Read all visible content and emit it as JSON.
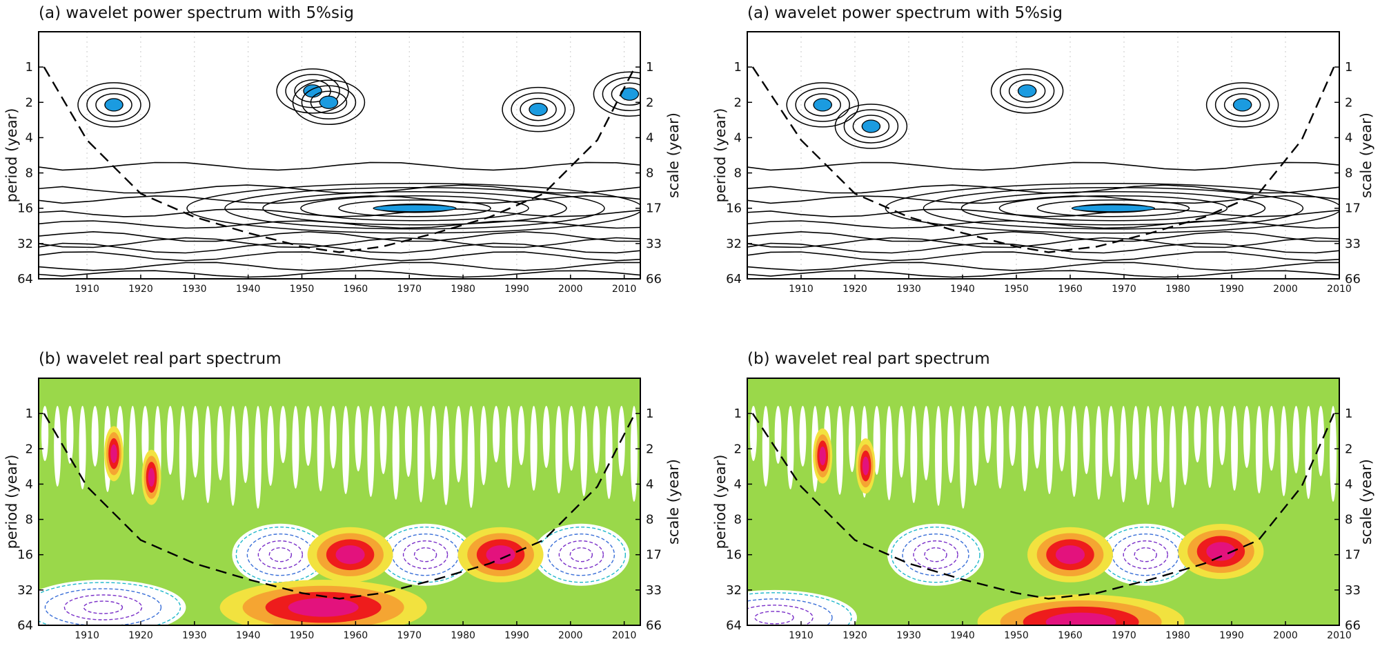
{
  "chart_data": [
    {
      "panel": "top-left",
      "type": "heatmap",
      "variant": "wavelet-power-contour",
      "title": "(a) wavelet power spectrum with 5%sig",
      "ylabel_left": "period (year)",
      "ylabel_right": "scale (year)",
      "xlim": [
        1901,
        2013
      ],
      "x_ticks": [
        1910,
        1920,
        1930,
        1940,
        1950,
        1960,
        1970,
        1980,
        1990,
        2000,
        2010
      ],
      "y_scale": "log2",
      "yticks_left": [
        "1",
        "2",
        "4",
        "8",
        "16",
        "32",
        "64"
      ],
      "yticks_right": [
        "1",
        "2",
        "4",
        "8",
        "17",
        "33",
        "66"
      ],
      "cone_of_influence": {
        "x": [
          1902,
          1910,
          1920,
          1930,
          1940,
          1950,
          1957,
          1965,
          1975,
          1985,
          1995,
          2005,
          2012
        ],
        "period": [
          1,
          4.2,
          12,
          19,
          26,
          34,
          38,
          34,
          26,
          19,
          12,
          4.2,
          1
        ]
      },
      "significant_regions": [
        {
          "x_center": 1915,
          "period": 2.1
        },
        {
          "x_center": 1952,
          "period": 1.6
        },
        {
          "x_center": 1955,
          "period": 2.0
        },
        {
          "x_center": 1994,
          "period": 2.3
        },
        {
          "x_center": 2011,
          "period": 1.7
        },
        {
          "x_center": 1971,
          "period": 16
        }
      ],
      "significance_color": "#1b9be0",
      "contour_color": "#000000"
    },
    {
      "panel": "top-right",
      "type": "heatmap",
      "variant": "wavelet-power-contour",
      "title": "(a) wavelet power spectrum with 5%sig",
      "ylabel_left": "period (year)",
      "ylabel_right": "scale (year)",
      "xlim": [
        1900,
        2010
      ],
      "x_ticks": [
        1910,
        1920,
        1930,
        1940,
        1950,
        1960,
        1970,
        1980,
        1990,
        2000,
        2010
      ],
      "y_scale": "log2",
      "yticks_left": [
        "1",
        "2",
        "4",
        "8",
        "16",
        "32",
        "64"
      ],
      "yticks_right": [
        "1",
        "2",
        "4",
        "8",
        "17",
        "33",
        "66"
      ],
      "cone_of_influence": {
        "x": [
          1901,
          1910,
          1920,
          1930,
          1940,
          1950,
          1956,
          1965,
          1975,
          1985,
          1995,
          2003,
          2009
        ],
        "period": [
          1,
          4.2,
          12,
          19,
          26,
          34,
          38,
          34,
          26,
          19,
          12,
          4.2,
          1
        ]
      },
      "significant_regions": [
        {
          "x_center": 1914,
          "period": 2.1
        },
        {
          "x_center": 1923,
          "period": 3.2
        },
        {
          "x_center": 1952,
          "period": 1.6
        },
        {
          "x_center": 1992,
          "period": 2.1
        },
        {
          "x_center": 1968,
          "period": 16
        }
      ],
      "significance_color": "#1b9be0",
      "contour_color": "#000000"
    },
    {
      "panel": "bottom-left",
      "type": "heatmap",
      "variant": "wavelet-real-part",
      "title": "(b) wavelet real part spectrum",
      "ylabel_left": "period (year)",
      "ylabel_right": "scale (year)",
      "xlim": [
        1901,
        2013
      ],
      "x_ticks": [
        1910,
        1920,
        1930,
        1940,
        1950,
        1960,
        1970,
        1980,
        1990,
        2000,
        2010
      ],
      "y_scale": "log2",
      "yticks_left": [
        "1",
        "2",
        "4",
        "8",
        "16",
        "32",
        "64"
      ],
      "yticks_right": [
        "1",
        "2",
        "4",
        "8",
        "17",
        "33",
        "66"
      ],
      "cone_of_influence": {
        "x": [
          1902,
          1910,
          1920,
          1930,
          1940,
          1950,
          1957,
          1965,
          1975,
          1985,
          1995,
          2005,
          2012
        ],
        "period": [
          1,
          4.2,
          12,
          19,
          26,
          34,
          38,
          34,
          26,
          19,
          12,
          4.2,
          1
        ]
      },
      "positive_maxima": [
        {
          "x_center": 1959,
          "period": 16
        },
        {
          "x_center": 1987,
          "period": 16
        },
        {
          "x_center": 1954,
          "period": 45
        },
        {
          "x_center": 1922,
          "period": 3.5
        },
        {
          "x_center": 1915,
          "period": 2.2
        }
      ],
      "negative_minima": [
        {
          "x_center": 1946,
          "period": 16
        },
        {
          "x_center": 1973,
          "period": 16
        },
        {
          "x_center": 2002,
          "period": 16
        },
        {
          "x_center": 1913,
          "period": 45
        }
      ],
      "positive_fill_colors": [
        "#9ad84a",
        "#f2e23f",
        "#f5a532",
        "#ee1c1c",
        "#e3127d"
      ],
      "negative_contour_colors": [
        "#1fb8c9",
        "#3a6fd8",
        "#7a2fc8"
      ]
    },
    {
      "panel": "bottom-right",
      "type": "heatmap",
      "variant": "wavelet-real-part",
      "title": "(b) wavelet real part spectrum",
      "ylabel_left": "period (year)",
      "ylabel_right": "scale (year)",
      "xlim": [
        1900,
        2010
      ],
      "x_ticks": [
        1910,
        1920,
        1930,
        1940,
        1950,
        1960,
        1970,
        1980,
        1990,
        2000,
        2010
      ],
      "y_scale": "log2",
      "yticks_left": [
        "1",
        "2",
        "4",
        "8",
        "16",
        "32",
        "64"
      ],
      "yticks_right": [
        "1",
        "2",
        "4",
        "8",
        "17",
        "33",
        "66"
      ],
      "cone_of_influence": {
        "x": [
          1901,
          1910,
          1920,
          1930,
          1940,
          1950,
          1956,
          1965,
          1975,
          1985,
          1995,
          2003,
          2009
        ],
        "period": [
          1,
          4.2,
          12,
          19,
          26,
          34,
          38,
          34,
          26,
          19,
          12,
          4.2,
          1
        ]
      },
      "positive_maxima": [
        {
          "x_center": 1960,
          "period": 16
        },
        {
          "x_center": 1988,
          "period": 15
        },
        {
          "x_center": 1962,
          "period": 60
        },
        {
          "x_center": 1914,
          "period": 2.3
        },
        {
          "x_center": 1922,
          "period": 2.8
        }
      ],
      "negative_minima": [
        {
          "x_center": 1935,
          "period": 16
        },
        {
          "x_center": 1974,
          "period": 16
        },
        {
          "x_center": 1905,
          "period": 55
        }
      ],
      "positive_fill_colors": [
        "#9ad84a",
        "#f2e23f",
        "#f5a532",
        "#ee1c1c",
        "#e3127d"
      ],
      "negative_contour_colors": [
        "#1fb8c9",
        "#3a6fd8",
        "#7a2fc8"
      ]
    }
  ]
}
